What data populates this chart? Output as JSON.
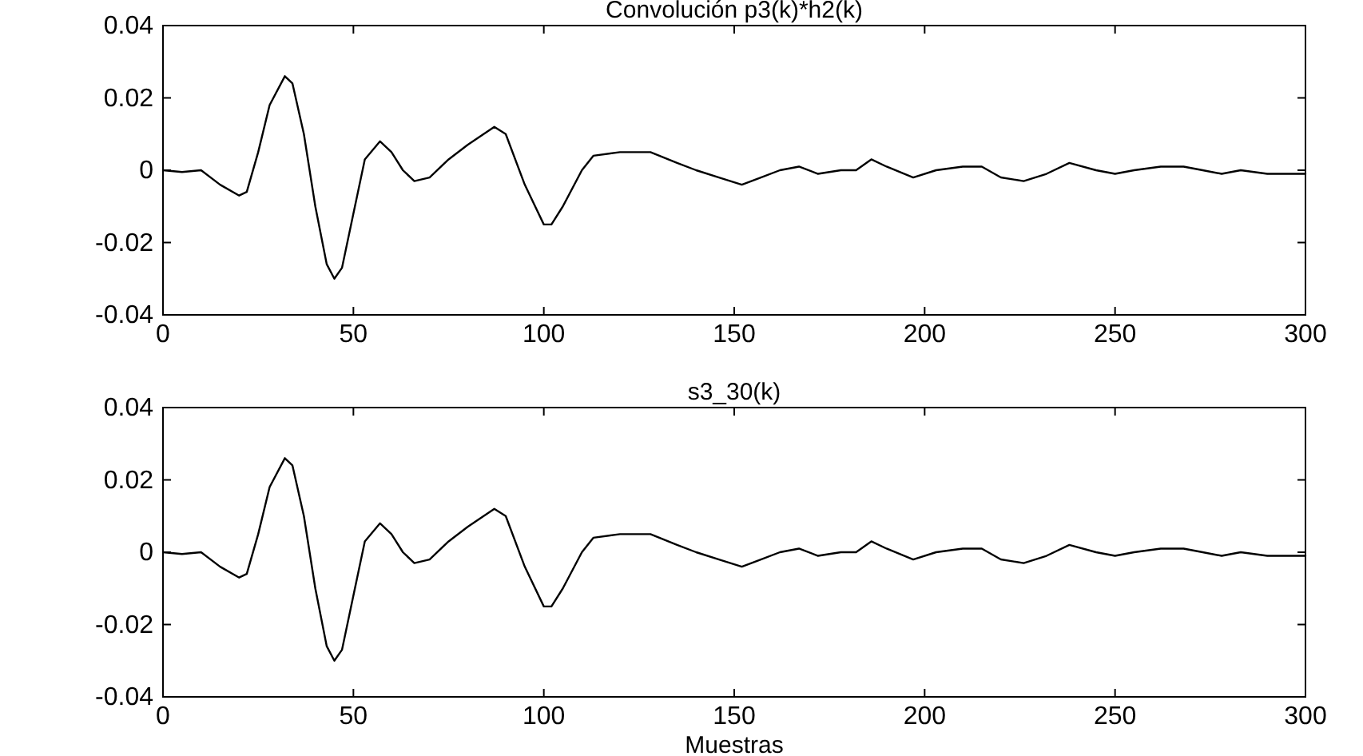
{
  "chart_data": [
    {
      "type": "line",
      "title": "Convolución p3(k)*h2(k)",
      "color": "#000000",
      "x": [
        0,
        5,
        10,
        15,
        20,
        22,
        25,
        28,
        32,
        34,
        37,
        40,
        43,
        45,
        47,
        50,
        53,
        57,
        60,
        63,
        66,
        70,
        75,
        80,
        87,
        90,
        95,
        100,
        102,
        105,
        110,
        113,
        120,
        128,
        135,
        140,
        146,
        152,
        157,
        162,
        167,
        172,
        178,
        182,
        186,
        190,
        197,
        203,
        210,
        215,
        220,
        226,
        232,
        238,
        245,
        250,
        255,
        262,
        268,
        273,
        278,
        283,
        290,
        300
      ],
      "values": [
        0,
        -0.0005,
        0,
        -0.004,
        -0.007,
        -0.006,
        0.005,
        0.018,
        0.026,
        0.024,
        0.01,
        -0.01,
        -0.026,
        -0.03,
        -0.027,
        -0.012,
        0.003,
        0.008,
        0.005,
        0,
        -0.003,
        -0.002,
        0.003,
        0.007,
        0.012,
        0.01,
        -0.004,
        -0.015,
        -0.015,
        -0.01,
        0,
        0.004,
        0.005,
        0.005,
        0.002,
        0,
        -0.002,
        -0.004,
        -0.002,
        0,
        0.001,
        -0.001,
        0,
        0,
        0.003,
        0.001,
        -0.002,
        0,
        0.001,
        0.001,
        -0.002,
        -0.003,
        -0.001,
        0.002,
        0,
        -0.001,
        0,
        0.001,
        0.001,
        0,
        -0.001,
        0,
        -0.001,
        -0.001
      ],
      "xlim": [
        0,
        300
      ],
      "ylim": [
        -0.04,
        0.04
      ],
      "xticks": [
        0,
        50,
        100,
        150,
        200,
        250,
        300
      ],
      "yticks": [
        -0.04,
        -0.02,
        0,
        0.02,
        0.04
      ]
    },
    {
      "type": "line",
      "title": "s3_30(k)",
      "xlabel": "Muestras",
      "color": "#000000",
      "x": [
        0,
        5,
        10,
        15,
        20,
        22,
        25,
        28,
        32,
        34,
        37,
        40,
        43,
        45,
        47,
        50,
        53,
        57,
        60,
        63,
        66,
        70,
        75,
        80,
        87,
        90,
        95,
        100,
        102,
        105,
        110,
        113,
        120,
        128,
        135,
        140,
        146,
        152,
        157,
        162,
        167,
        172,
        178,
        182,
        186,
        190,
        197,
        203,
        210,
        215,
        220,
        226,
        232,
        238,
        245,
        250,
        255,
        262,
        268,
        273,
        278,
        283,
        290,
        300
      ],
      "values": [
        0,
        -0.0005,
        0,
        -0.004,
        -0.007,
        -0.006,
        0.005,
        0.018,
        0.026,
        0.024,
        0.01,
        -0.01,
        -0.026,
        -0.03,
        -0.027,
        -0.012,
        0.003,
        0.008,
        0.005,
        0,
        -0.003,
        -0.002,
        0.003,
        0.007,
        0.012,
        0.01,
        -0.004,
        -0.015,
        -0.015,
        -0.01,
        0,
        0.004,
        0.005,
        0.005,
        0.002,
        0,
        -0.002,
        -0.004,
        -0.002,
        0,
        0.001,
        -0.001,
        0,
        0,
        0.003,
        0.001,
        -0.002,
        0,
        0.001,
        0.001,
        -0.002,
        -0.003,
        -0.001,
        0.002,
        0,
        -0.001,
        0,
        0.001,
        0.001,
        0,
        -0.001,
        0,
        -0.001,
        -0.001
      ],
      "xlim": [
        0,
        300
      ],
      "ylim": [
        -0.04,
        0.04
      ],
      "xticks": [
        0,
        50,
        100,
        150,
        200,
        250,
        300
      ],
      "yticks": [
        -0.04,
        -0.02,
        0,
        0.02,
        0.04
      ]
    }
  ]
}
